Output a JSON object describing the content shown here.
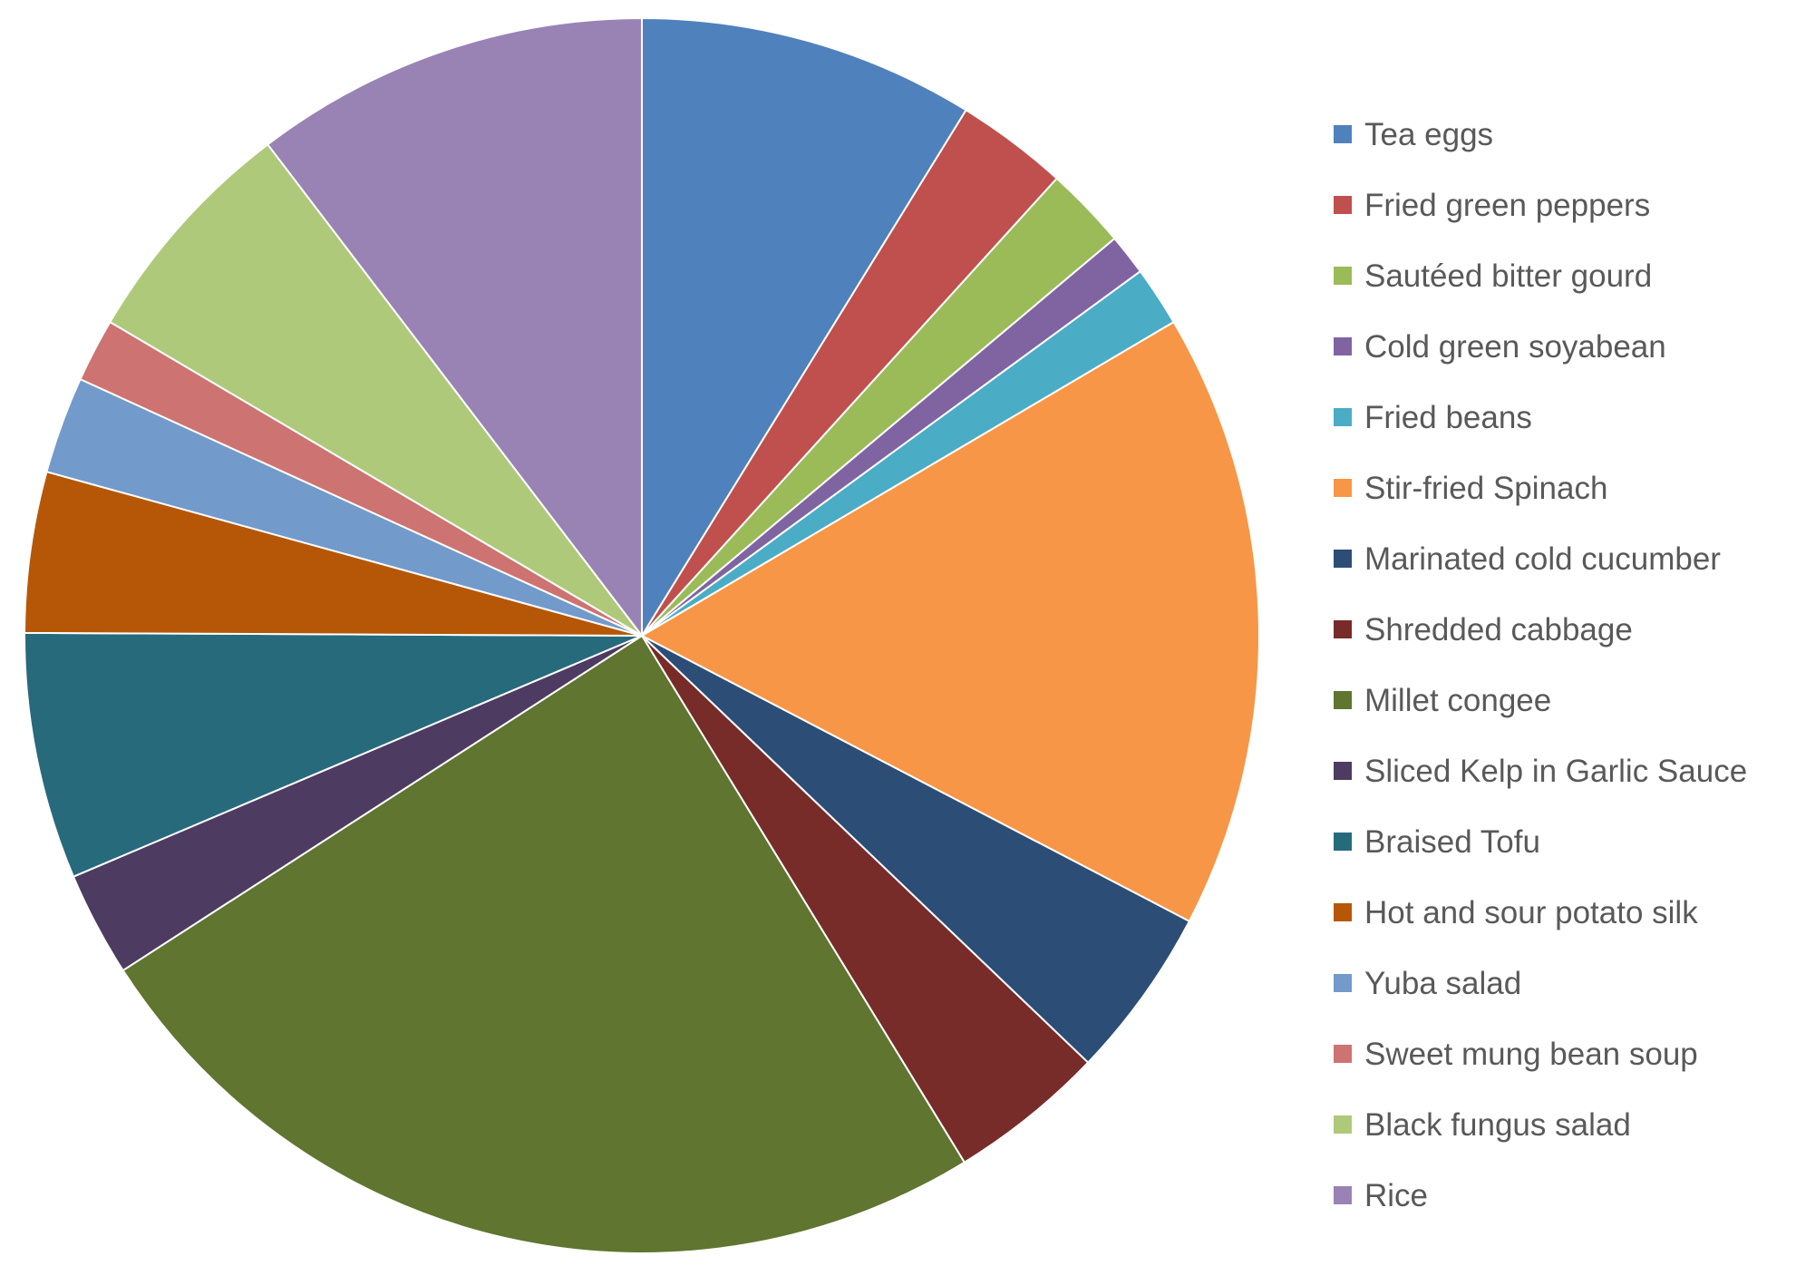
{
  "chart_data": {
    "type": "pie",
    "title": "",
    "legend_position": "right",
    "slices": [
      {
        "label": "Tea eggs",
        "value": 9.0,
        "color": "#4F81BD"
      },
      {
        "label": "Fried green peppers",
        "value": 3.0,
        "color": "#C0504D"
      },
      {
        "label": "Sautéed bitter gourd",
        "value": 2.2,
        "color": "#9BBB59"
      },
      {
        "label": "Cold green soyabean",
        "value": 1.1,
        "color": "#8064A2"
      },
      {
        "label": "Fried beans",
        "value": 1.6,
        "color": "#4BACC6"
      },
      {
        "label": "Stir-fried Spinach",
        "value": 16.5,
        "color": "#F79646"
      },
      {
        "label": "Marinated cold cucumber",
        "value": 4.6,
        "color": "#2C4D75"
      },
      {
        "label": "Shredded cabbage",
        "value": 4.2,
        "color": "#772C2A"
      },
      {
        "label": "Millet congee",
        "value": 25.2,
        "color": "#5F7530"
      },
      {
        "label": "Sliced Kelp in Garlic Sauce",
        "value": 2.8,
        "color": "#4D3B62"
      },
      {
        "label": "Braised Tofu",
        "value": 6.6,
        "color": "#276A7C"
      },
      {
        "label": "Hot and sour potato silk",
        "value": 4.3,
        "color": "#B65708"
      },
      {
        "label": "Yuba salad",
        "value": 2.6,
        "color": "#729ACA"
      },
      {
        "label": "Sweet mung bean soup",
        "value": 1.7,
        "color": "#CD7371"
      },
      {
        "label": "Black fungus salad",
        "value": 6.3,
        "color": "#AFC97A"
      },
      {
        "label": "Rice",
        "value": 10.6,
        "color": "#9983B5"
      }
    ]
  }
}
